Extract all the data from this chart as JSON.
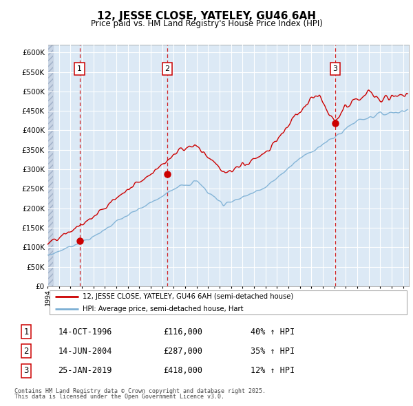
{
  "title": "12, JESSE CLOSE, YATELEY, GU46 6AH",
  "subtitle": "Price paid vs. HM Land Registry's House Price Index (HPI)",
  "legend_line1": "12, JESSE CLOSE, YATELEY, GU46 6AH (semi-detached house)",
  "legend_line2": "HPI: Average price, semi-detached house, Hart",
  "transactions": [
    {
      "num": 1,
      "date": "14-OCT-1996",
      "price": 116000,
      "pct": "40%",
      "dir": "↑",
      "x_year": 1996.79
    },
    {
      "num": 2,
      "date": "14-JUN-2004",
      "price": 287000,
      "pct": "35%",
      "dir": "↑",
      "x_year": 2004.45
    },
    {
      "num": 3,
      "date": "25-JAN-2019",
      "price": 418000,
      "pct": "12%",
      "dir": "↑",
      "x_year": 2019.07
    }
  ],
  "footnote1": "Contains HM Land Registry data © Crown copyright and database right 2025.",
  "footnote2": "This data is licensed under the Open Government Licence v3.0.",
  "red_color": "#cc0000",
  "blue_color": "#7bafd4",
  "bg_color": "#dce9f5",
  "grid_color": "#ffffff",
  "xmin": 1994.0,
  "xmax": 2025.5,
  "ymin": 0,
  "ymax": 620000,
  "yticks": [
    0,
    50000,
    100000,
    150000,
    200000,
    250000,
    300000,
    350000,
    400000,
    450000,
    500000,
    550000,
    600000
  ]
}
